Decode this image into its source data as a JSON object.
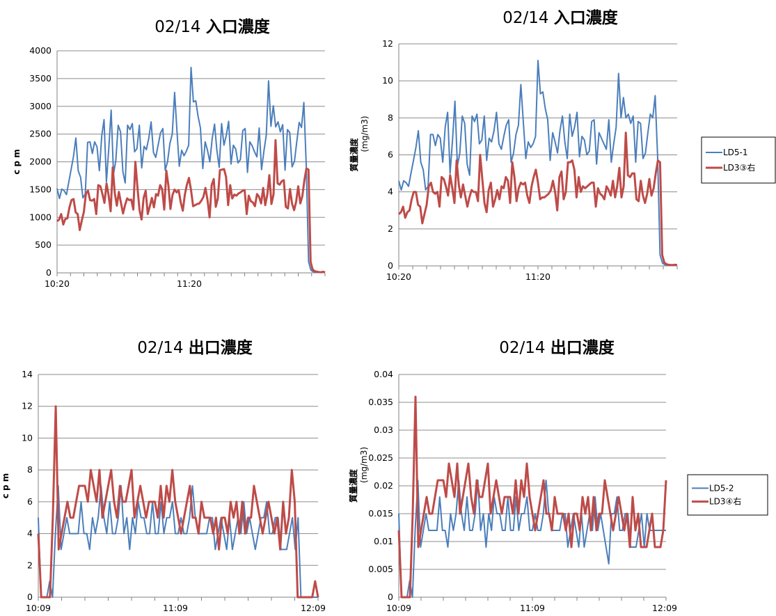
{
  "colors": {
    "series1": "#4a7ebb",
    "series2": "#be4b48",
    "grid": "#8c8c8c"
  },
  "chart_data": [
    {
      "type": "line",
      "title_date": "02/14",
      "title_text": "入口濃度",
      "ylabel": "c p m",
      "ylabel_unit": "",
      "ylim": [
        0,
        4000
      ],
      "yticks": [
        "0",
        "500",
        "1000",
        "1500",
        "2000",
        "2500",
        "3000",
        "3500",
        "4000"
      ],
      "xtick_labels": [
        "10:20",
        "11:20"
      ],
      "legend": [],
      "series": [
        {
          "values": [
            1520,
            1340,
            1510,
            1480,
            1410,
            1640,
            1870,
            2100,
            2430,
            1840,
            1720,
            1350,
            1420,
            2350,
            2360,
            2150,
            2360,
            2270,
            1840,
            2470,
            2760,
            1640,
            2240,
            2930,
            1780,
            2020,
            2660,
            2540,
            1820,
            1620,
            2660,
            2580,
            2690,
            2180,
            2240,
            2660,
            1890,
            2280,
            2220,
            2420,
            2720,
            2170,
            2080,
            2300,
            2520,
            2600,
            1850,
            2000,
            2330,
            2500,
            3250,
            2570,
            1920,
            2210,
            2110,
            2190,
            2300,
            3700,
            3080,
            3100,
            2820,
            2610,
            1880,
            2360,
            2210,
            2000,
            2420,
            2680,
            2210,
            1900,
            2690,
            2300,
            2480,
            2730,
            1960,
            2300,
            2230,
            1980,
            2040,
            2560,
            2600,
            1810,
            2360,
            2290,
            2180,
            2090,
            2610,
            1860,
            2190,
            2480,
            3460,
            2640,
            3010,
            2630,
            2720,
            2540,
            2670,
            1850,
            2580,
            2530,
            1910,
            2010,
            2370,
            2710,
            2620,
            3070,
            1950,
            200,
            50,
            20,
            10,
            15,
            10,
            20,
            10
          ],
          "color": "#4a7ebb",
          "width": 2
        },
        {
          "values": [
            930,
            960,
            1060,
            870,
            970,
            980,
            1180,
            1310,
            1330,
            1090,
            1060,
            770,
            940,
            1100,
            1430,
            1480,
            1310,
            1300,
            1330,
            1060,
            1580,
            1560,
            1420,
            1260,
            1610,
            1400,
            1110,
            1900,
            1440,
            1210,
            1460,
            1260,
            1070,
            1220,
            1340,
            1310,
            1320,
            1140,
            2000,
            1540,
            1130,
            960,
            1350,
            1480,
            1060,
            1200,
            1350,
            1180,
            1420,
            1390,
            1580,
            1510,
            1140,
            1840,
            1580,
            1150,
            1400,
            1500,
            1450,
            1490,
            1270,
            1120,
            1410,
            1590,
            1710,
            1490,
            1200,
            1220,
            1240,
            1250,
            1300,
            1370,
            1530,
            1310,
            1000,
            1580,
            1690,
            1190,
            1340,
            1850,
            1860,
            1870,
            1730,
            1220,
            1580,
            1340,
            1410,
            1390,
            1430,
            1450,
            1480,
            1490,
            1060,
            1390,
            1290,
            1270,
            1200,
            1420,
            1370,
            1250,
            1530,
            1220,
            1410,
            1760,
            1240,
            1410,
            2390,
            1610,
            1590,
            1650,
            1670,
            1190,
            1160,
            1510,
            1250,
            1130,
            1280,
            1560,
            1250,
            1380,
            1670,
            1880,
            1860,
            200,
            60,
            30,
            20,
            15,
            10,
            20,
            10
          ],
          "color": "#be4b48",
          "width": 3
        }
      ]
    },
    {
      "type": "line",
      "title_date": "02/14",
      "title_text": "入口濃度",
      "ylabel": "質量濃度",
      "ylabel_unit": "(mg/m3)",
      "ylim": [
        0,
        12
      ],
      "yticks": [
        "0",
        "2",
        "4",
        "6",
        "8",
        "10",
        "12"
      ],
      "xtick_labels": [
        "10:20",
        "11:20"
      ],
      "legend": [
        "LD5-1",
        "LD3③右"
      ],
      "series": [
        {
          "name": "LD5-1",
          "values": [
            4.6,
            4.1,
            4.6,
            4.5,
            4.3,
            5.0,
            5.7,
            6.4,
            7.3,
            5.6,
            5.2,
            4.1,
            4.3,
            7.1,
            7.1,
            6.5,
            7.1,
            6.9,
            5.6,
            7.5,
            8.3,
            5.0,
            6.8,
            8.9,
            5.4,
            6.1,
            8.1,
            7.7,
            5.5,
            4.9,
            8.1,
            7.8,
            8.2,
            6.6,
            6.8,
            8.1,
            5.7,
            6.9,
            6.7,
            7.3,
            8.3,
            6.6,
            6.3,
            7.0,
            7.6,
            7.9,
            5.6,
            6.1,
            7.1,
            7.6,
            9.8,
            7.8,
            5.8,
            6.7,
            6.4,
            6.6,
            7.0,
            11.1,
            9.3,
            9.4,
            8.5,
            7.9,
            5.7,
            7.2,
            6.7,
            6.1,
            7.3,
            8.1,
            6.7,
            5.8,
            8.2,
            7.0,
            7.5,
            8.3,
            5.9,
            7.0,
            6.8,
            6.0,
            6.2,
            7.8,
            7.9,
            5.5,
            7.2,
            6.9,
            6.6,
            6.3,
            7.9,
            5.6,
            6.6,
            7.5,
            10.4,
            8.0,
            9.1,
            8.0,
            8.2,
            7.7,
            8.1,
            5.6,
            7.8,
            7.7,
            5.8,
            6.1,
            7.2,
            8.2,
            8.0,
            9.2,
            5.9,
            0.6,
            0.15,
            0.06,
            0.05,
            0.05,
            0.05,
            0.06,
            0.05
          ],
          "color": "#4a7ebb",
          "width": 2
        },
        {
          "name": "LD3③右",
          "values": [
            2.8,
            2.9,
            3.2,
            2.6,
            2.9,
            3.0,
            3.6,
            4.0,
            4.0,
            3.3,
            3.2,
            2.3,
            2.8,
            3.3,
            4.3,
            4.5,
            4.0,
            3.9,
            4.0,
            3.2,
            4.8,
            4.7,
            4.3,
            3.8,
            4.9,
            4.2,
            3.4,
            5.7,
            4.4,
            3.7,
            4.4,
            3.8,
            3.2,
            3.7,
            4.1,
            4.0,
            4.0,
            3.5,
            6.0,
            4.7,
            3.4,
            2.9,
            4.1,
            4.5,
            3.2,
            3.6,
            4.1,
            3.6,
            4.3,
            4.2,
            4.8,
            4.6,
            3.4,
            5.6,
            4.8,
            3.5,
            4.2,
            4.5,
            4.4,
            4.5,
            3.8,
            3.4,
            4.3,
            4.8,
            5.2,
            4.5,
            3.6,
            3.7,
            3.7,
            3.8,
            3.9,
            4.1,
            4.6,
            4.0,
            3.0,
            4.8,
            5.1,
            3.6,
            4.0,
            5.6,
            5.6,
            5.7,
            5.2,
            3.7,
            4.8,
            4.0,
            4.3,
            4.2,
            4.3,
            4.4,
            4.5,
            4.5,
            3.2,
            4.2,
            3.9,
            3.8,
            3.6,
            4.3,
            4.1,
            3.8,
            4.6,
            3.7,
            4.3,
            5.3,
            3.7,
            4.3,
            7.2,
            4.9,
            4.8,
            5.0,
            5.0,
            3.6,
            3.5,
            4.6,
            3.8,
            3.4,
            3.9,
            4.7,
            3.8,
            4.2,
            5.0,
            5.7,
            5.6,
            0.6,
            0.18,
            0.09,
            0.06,
            0.05,
            0.05,
            0.06,
            0.05
          ],
          "color": "#be4b48",
          "width": 3
        }
      ]
    },
    {
      "type": "line",
      "title_date": "02/14",
      "title_text": "出口濃度",
      "ylabel": "c p m",
      "ylabel_unit": "",
      "ylim": [
        0,
        14
      ],
      "yticks": [
        "0",
        "2",
        "4",
        "6",
        "8",
        "10",
        "12",
        "14"
      ],
      "xtick_labels": [
        "10:09",
        "11:09",
        "12:09"
      ],
      "legend": [],
      "series": [
        {
          "values": [
            5,
            0,
            0,
            0,
            1,
            0,
            4,
            7,
            3,
            4,
            5,
            4,
            4,
            4,
            4,
            6,
            4,
            4,
            3,
            5,
            4,
            5,
            7,
            5,
            4,
            6,
            4,
            4,
            5,
            7,
            4,
            5,
            3,
            5,
            4,
            6,
            5,
            5,
            4,
            4,
            6,
            4,
            4,
            6,
            4,
            5,
            5,
            6,
            4,
            4,
            5,
            4,
            4,
            5,
            7,
            5,
            4,
            4,
            4,
            4,
            5,
            5,
            3,
            4,
            5,
            4,
            3,
            5,
            3,
            4,
            5,
            4,
            6,
            4,
            5,
            4,
            3,
            4,
            5,
            5,
            6,
            4,
            4,
            5,
            5,
            3,
            3,
            3,
            4,
            5,
            3,
            5,
            0,
            0,
            0,
            0,
            0,
            0,
            0
          ],
          "color": "#4a7ebb",
          "width": 2
        },
        {
          "values": [
            4,
            0,
            0,
            0,
            0,
            5,
            12,
            3,
            4,
            5,
            6,
            5,
            5,
            6,
            7,
            7,
            7,
            6,
            8,
            7,
            6,
            8,
            5,
            6,
            7,
            8,
            6,
            5,
            7,
            6,
            6,
            7,
            8,
            5,
            6,
            7,
            6,
            5,
            6,
            6,
            6,
            5,
            7,
            5,
            7,
            6,
            8,
            6,
            5,
            4,
            5,
            6,
            7,
            5,
            5,
            4,
            6,
            5,
            5,
            5,
            4,
            5,
            3,
            5,
            5,
            4,
            6,
            5,
            6,
            4,
            6,
            4,
            5,
            5,
            7,
            6,
            5,
            4,
            5,
            6,
            5,
            4,
            5,
            3,
            6,
            4,
            5,
            8,
            6,
            0,
            0,
            0,
            0,
            0,
            0,
            1,
            0
          ],
          "color": "#be4b48",
          "width": 3
        }
      ]
    },
    {
      "type": "line",
      "title_date": "02/14",
      "title_text": "出口濃度",
      "ylabel": "質量濃度",
      "ylabel_unit": "(mg/m3)",
      "ylim": [
        0,
        0.04
      ],
      "yticks": [
        "0",
        "0.005",
        "0.01",
        "0.015",
        "0.02",
        "0.025",
        "0.03",
        "0.035",
        "0.04"
      ],
      "xtick_labels": [
        "10:09",
        "11:09",
        "12:09"
      ],
      "legend": [
        "LD5-2",
        "LD3④右"
      ],
      "series": [
        {
          "name": "LD5-2",
          "values": [
            0.015,
            0,
            0,
            0,
            0.003,
            0,
            0.012,
            0.021,
            0.009,
            0.012,
            0.015,
            0.012,
            0.012,
            0.012,
            0.012,
            0.018,
            0.012,
            0.012,
            0.009,
            0.015,
            0.012,
            0.015,
            0.021,
            0.015,
            0.012,
            0.018,
            0.012,
            0.012,
            0.015,
            0.021,
            0.012,
            0.015,
            0.009,
            0.015,
            0.012,
            0.018,
            0.015,
            0.015,
            0.012,
            0.012,
            0.018,
            0.012,
            0.012,
            0.018,
            0.012,
            0.015,
            0.015,
            0.018,
            0.012,
            0.012,
            0.015,
            0.012,
            0.012,
            0.015,
            0.021,
            0.015,
            0.012,
            0.012,
            0.012,
            0.012,
            0.015,
            0.015,
            0.009,
            0.012,
            0.015,
            0.012,
            0.009,
            0.015,
            0.009,
            0.012,
            0.015,
            0.012,
            0.018,
            0.012,
            0.015,
            0.012,
            0.009,
            0.006,
            0.015,
            0.015,
            0.018,
            0.012,
            0.012,
            0.015,
            0.015,
            0.009,
            0.009,
            0.009,
            0.012,
            0.015,
            0.009,
            0.015,
            0.012,
            0.012,
            0.012,
            0.012,
            0.012,
            0.012,
            0.012
          ],
          "color": "#4a7ebb",
          "width": 2
        },
        {
          "name": "LD3④右",
          "values": [
            0.012,
            0,
            0,
            0,
            0,
            0.015,
            0.036,
            0.009,
            0.012,
            0.015,
            0.018,
            0.015,
            0.015,
            0.018,
            0.021,
            0.021,
            0.021,
            0.018,
            0.024,
            0.021,
            0.018,
            0.024,
            0.015,
            0.018,
            0.021,
            0.024,
            0.018,
            0.015,
            0.021,
            0.018,
            0.018,
            0.021,
            0.024,
            0.015,
            0.018,
            0.021,
            0.018,
            0.015,
            0.018,
            0.018,
            0.018,
            0.015,
            0.021,
            0.015,
            0.021,
            0.018,
            0.024,
            0.018,
            0.015,
            0.012,
            0.015,
            0.018,
            0.021,
            0.015,
            0.015,
            0.012,
            0.018,
            0.015,
            0.015,
            0.015,
            0.012,
            0.015,
            0.009,
            0.015,
            0.015,
            0.012,
            0.018,
            0.015,
            0.018,
            0.012,
            0.018,
            0.012,
            0.015,
            0.015,
            0.021,
            0.018,
            0.015,
            0.012,
            0.015,
            0.018,
            0.015,
            0.012,
            0.015,
            0.009,
            0.018,
            0.012,
            0.015,
            0.009,
            0.009,
            0.009,
            0.012,
            0.015,
            0.009,
            0.009,
            0.009,
            0.012,
            0.021
          ],
          "color": "#be4b48",
          "width": 3
        }
      ]
    }
  ]
}
